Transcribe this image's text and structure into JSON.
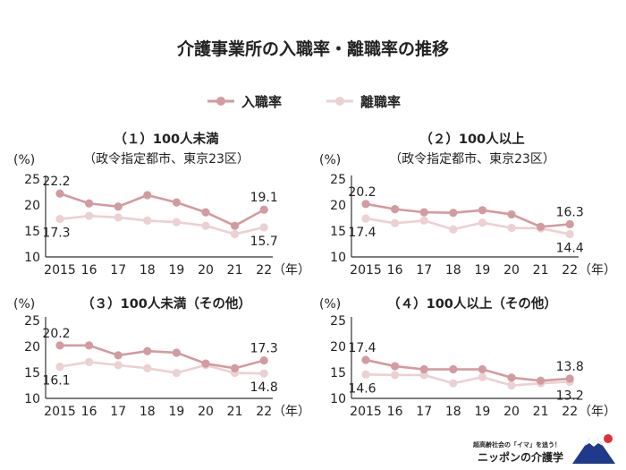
{
  "title": "介護事業所の入職率・離職率の推移",
  "legend": [
    {
      "label": "入職率",
      "color": "#d39aa0"
    },
    {
      "label": "離職率",
      "color": "#ecd0d2"
    }
  ],
  "logo": {
    "tagline": "超高齢社会の「イマ」を追う！",
    "name": "ニッポンの介護学"
  },
  "chart_data": [
    {
      "type": "line",
      "title": "（１）100人未満",
      "subtitle": "（政令指定都市、東京23区）",
      "ylabel": "(%)",
      "xunit": "（年）",
      "categories": [
        "2015",
        "16",
        "17",
        "18",
        "19",
        "20",
        "21",
        "22"
      ],
      "ylim": [
        10,
        25
      ],
      "yticks": [
        "25",
        "20",
        "15",
        "10"
      ],
      "series": [
        {
          "name": "入職率",
          "values": [
            22.2,
            20.3,
            19.7,
            21.9,
            20.5,
            18.6,
            16.0,
            19.1
          ],
          "labels": [
            "22.2",
            "",
            "",
            "",
            "",
            "",
            "",
            "19.1"
          ]
        },
        {
          "name": "離職率",
          "values": [
            17.3,
            17.9,
            17.6,
            17.0,
            16.7,
            16.0,
            14.4,
            15.7
          ],
          "labels": [
            "17.3",
            "",
            "",
            "",
            "",
            "",
            "",
            "15.7"
          ]
        }
      ]
    },
    {
      "type": "line",
      "title": "（２）100人以上",
      "subtitle": "（政令指定都市、東京23区）",
      "ylabel": "(%)",
      "xunit": "（年）",
      "categories": [
        "2015",
        "16",
        "17",
        "18",
        "19",
        "20",
        "21",
        "22"
      ],
      "ylim": [
        10,
        25
      ],
      "yticks": [
        "25",
        "20",
        "15",
        "10"
      ],
      "series": [
        {
          "name": "入職率",
          "values": [
            20.2,
            19.2,
            18.6,
            18.5,
            19.0,
            18.2,
            15.8,
            16.3
          ],
          "labels": [
            "20.2",
            "",
            "",
            "",
            "",
            "",
            "",
            "16.3"
          ]
        },
        {
          "name": "離職率",
          "values": [
            17.4,
            16.5,
            17.0,
            15.3,
            16.6,
            15.6,
            15.5,
            14.4
          ],
          "labels": [
            "17.4",
            "",
            "",
            "",
            "",
            "",
            "",
            "14.4"
          ]
        }
      ]
    },
    {
      "type": "line",
      "title": "（３）100人未満（その他）",
      "subtitle": "",
      "ylabel": "(%)",
      "xunit": "（年）",
      "categories": [
        "2015",
        "16",
        "17",
        "18",
        "19",
        "20",
        "21",
        "22"
      ],
      "ylim": [
        10,
        25
      ],
      "yticks": [
        "25",
        "20",
        "15",
        "10"
      ],
      "series": [
        {
          "name": "入職率",
          "values": [
            20.2,
            20.2,
            18.3,
            19.1,
            18.8,
            16.7,
            15.8,
            17.3
          ],
          "labels": [
            "20.2",
            "",
            "",
            "",
            "",
            "",
            "",
            "17.3"
          ]
        },
        {
          "name": "離職率",
          "values": [
            16.1,
            17.0,
            16.4,
            15.8,
            14.9,
            16.4,
            14.9,
            14.8
          ],
          "labels": [
            "16.1",
            "",
            "",
            "",
            "",
            "",
            "",
            "14.8"
          ]
        }
      ]
    },
    {
      "type": "line",
      "title": "（４）100人以上（その他）",
      "subtitle": "",
      "ylabel": "(%)",
      "xunit": "（年）",
      "categories": [
        "2015",
        "16",
        "17",
        "18",
        "19",
        "20",
        "21",
        "22"
      ],
      "ylim": [
        10,
        25
      ],
      "yticks": [
        "25",
        "20",
        "15",
        "10"
      ],
      "series": [
        {
          "name": "入職率",
          "values": [
            17.4,
            16.2,
            15.6,
            15.6,
            15.6,
            14.0,
            13.4,
            13.8
          ],
          "labels": [
            "17.4",
            "",
            "",
            "",
            "",
            "",
            "",
            "13.8"
          ]
        },
        {
          "name": "離職率",
          "values": [
            14.6,
            14.5,
            14.5,
            12.9,
            14.1,
            12.5,
            12.9,
            13.2
          ],
          "labels": [
            "14.6",
            "",
            "",
            "",
            "",
            "",
            "",
            "13.2"
          ]
        }
      ]
    }
  ]
}
